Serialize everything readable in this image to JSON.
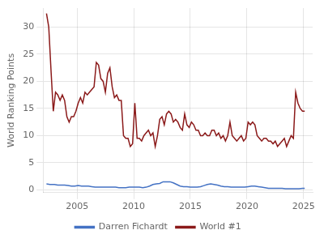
{
  "chart_data": {
    "type": "line",
    "ylabel": "World Ranking Points",
    "xlim": [
      2002.0,
      2025.8
    ],
    "xticks": [
      2005,
      2010,
      2015,
      2020,
      2025
    ],
    "ylim": [
      -0.5,
      33.5
    ],
    "yticks": [
      0,
      5,
      10,
      15,
      20,
      25,
      30
    ],
    "grid": true,
    "legend": "bottom",
    "series": [
      {
        "name": "Darren Fichardt",
        "color": "#4472c4",
        "x": [
          2002.3,
          2002.6,
          2003.0,
          2003.3,
          2003.6,
          2003.9,
          2004.2,
          2004.5,
          2004.8,
          2005.1,
          2005.4,
          2005.7,
          2006.0,
          2006.3,
          2006.6,
          2006.9,
          2007.2,
          2007.5,
          2007.8,
          2008.1,
          2008.4,
          2008.7,
          2009.0,
          2009.3,
          2009.6,
          2009.9,
          2010.2,
          2010.5,
          2010.8,
          2011.1,
          2011.4,
          2011.7,
          2012.0,
          2012.3,
          2012.6,
          2012.9,
          2013.2,
          2013.5,
          2013.8,
          2014.1,
          2014.4,
          2014.7,
          2015.0,
          2015.3,
          2015.6,
          2015.9,
          2016.2,
          2016.5,
          2016.8,
          2017.1,
          2017.4,
          2017.7,
          2018.0,
          2018.3,
          2018.6,
          2018.9,
          2019.2,
          2019.5,
          2019.8,
          2020.1,
          2020.4,
          2020.7,
          2021.0,
          2021.3,
          2021.6,
          2021.9,
          2022.2,
          2022.5,
          2022.8,
          2023.1,
          2023.4,
          2023.7,
          2024.0,
          2024.3,
          2024.6,
          2024.9,
          2025.1
        ],
        "values": [
          1.1,
          1.0,
          1.0,
          0.9,
          0.9,
          0.9,
          0.8,
          0.7,
          0.7,
          0.8,
          0.7,
          0.7,
          0.7,
          0.6,
          0.5,
          0.5,
          0.5,
          0.5,
          0.5,
          0.5,
          0.5,
          0.4,
          0.4,
          0.4,
          0.5,
          0.5,
          0.5,
          0.5,
          0.4,
          0.5,
          0.7,
          1.0,
          1.1,
          1.2,
          1.5,
          1.5,
          1.5,
          1.3,
          1.0,
          0.7,
          0.6,
          0.6,
          0.5,
          0.5,
          0.5,
          0.6,
          0.8,
          1.0,
          1.1,
          1.0,
          0.9,
          0.7,
          0.6,
          0.6,
          0.5,
          0.5,
          0.5,
          0.5,
          0.5,
          0.6,
          0.7,
          0.7,
          0.6,
          0.5,
          0.4,
          0.3,
          0.3,
          0.3,
          0.3,
          0.3,
          0.2,
          0.2,
          0.2,
          0.2,
          0.2,
          0.3,
          0.3
        ]
      },
      {
        "name": "World #1",
        "color": "#8b1a1a",
        "x": [
          2002.3,
          2002.5,
          2002.7,
          2002.9,
          2003.1,
          2003.3,
          2003.5,
          2003.7,
          2003.9,
          2004.1,
          2004.3,
          2004.5,
          2004.7,
          2004.9,
          2005.1,
          2005.3,
          2005.5,
          2005.7,
          2005.9,
          2006.1,
          2006.3,
          2006.5,
          2006.7,
          2006.9,
          2007.1,
          2007.3,
          2007.5,
          2007.7,
          2007.9,
          2008.1,
          2008.3,
          2008.5,
          2008.7,
          2008.9,
          2009.1,
          2009.3,
          2009.5,
          2009.7,
          2009.9,
          2010.1,
          2010.3,
          2010.5,
          2010.7,
          2010.9,
          2011.1,
          2011.3,
          2011.5,
          2011.7,
          2011.9,
          2012.1,
          2012.3,
          2012.5,
          2012.7,
          2012.9,
          2013.1,
          2013.3,
          2013.5,
          2013.7,
          2013.9,
          2014.1,
          2014.3,
          2014.5,
          2014.7,
          2014.9,
          2015.1,
          2015.3,
          2015.5,
          2015.7,
          2015.9,
          2016.1,
          2016.3,
          2016.5,
          2016.7,
          2016.9,
          2017.1,
          2017.3,
          2017.5,
          2017.7,
          2017.9,
          2018.1,
          2018.3,
          2018.5,
          2018.7,
          2018.9,
          2019.1,
          2019.3,
          2019.5,
          2019.7,
          2019.9,
          2020.1,
          2020.3,
          2020.5,
          2020.7,
          2020.9,
          2021.1,
          2021.3,
          2021.5,
          2021.7,
          2021.9,
          2022.1,
          2022.3,
          2022.5,
          2022.7,
          2022.9,
          2023.1,
          2023.3,
          2023.5,
          2023.7,
          2023.9,
          2024.1,
          2024.3,
          2024.5,
          2024.7,
          2024.9,
          2025.1
        ],
        "values": [
          32.5,
          30,
          22,
          14.5,
          18,
          17.5,
          16.5,
          17.5,
          16.5,
          13.5,
          12.5,
          13.5,
          13.5,
          14.5,
          16,
          17,
          16,
          18,
          17.5,
          18,
          18.5,
          19,
          23.5,
          23,
          20.5,
          20,
          18,
          21.5,
          22.5,
          19,
          17,
          17.5,
          16.5,
          16.5,
          10,
          9.5,
          9.5,
          8,
          8.5,
          16,
          9.5,
          9.5,
          9,
          10,
          10.5,
          11,
          10,
          10.5,
          8,
          10,
          13,
          13.5,
          12,
          14,
          14.5,
          14,
          12.5,
          13,
          12.5,
          11.5,
          11,
          14,
          12,
          11.5,
          12.5,
          12,
          11,
          11,
          10,
          10,
          10.5,
          10,
          10,
          11,
          11,
          10,
          10.5,
          9.5,
          10,
          9,
          10,
          12.5,
          10,
          9.5,
          9,
          9.5,
          10,
          9,
          9.5,
          12.5,
          12,
          12.5,
          12,
          10,
          9.5,
          9,
          9.5,
          9.5,
          9,
          9,
          8.5,
          9,
          8,
          8.5,
          9,
          9.5,
          8,
          9,
          10,
          9.5,
          18,
          16,
          15,
          14.5,
          14.5
        ]
      }
    ]
  }
}
